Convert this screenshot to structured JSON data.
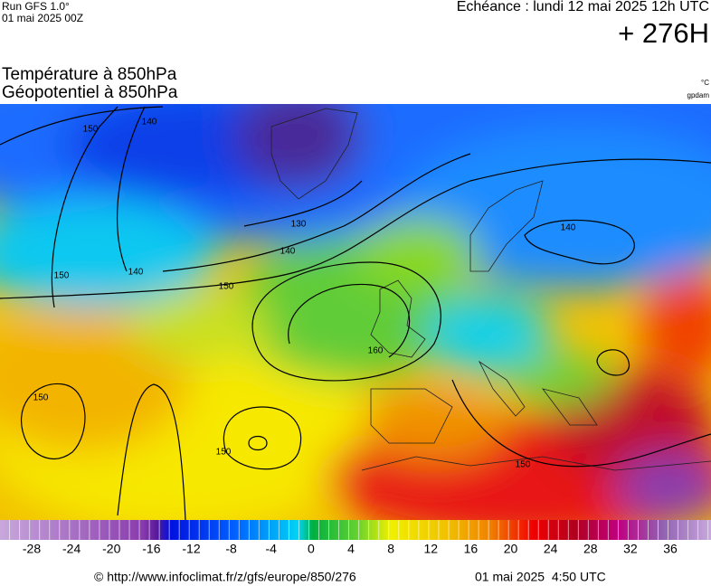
{
  "header": {
    "run": "Run GFS 1.0°",
    "run_date": "01 mai 2025 00Z",
    "forecast_time": "Echéance : lundi 12 mai 2025 12h UTC",
    "lead_time": "+ 276H"
  },
  "titles": [
    "Température à 850hPa",
    "Géopotentiel à 850hPa"
  ],
  "units": {
    "temperature": "°C",
    "geopotential": "gpdam"
  },
  "map": {
    "contour_labels": [
      150,
      140,
      150,
      140,
      150,
      140,
      130,
      160,
      150,
      150,
      150,
      140
    ]
  },
  "colorbar": {
    "ticks": [
      -28,
      -24,
      -20,
      -16,
      -12,
      -8,
      -4,
      0,
      4,
      8,
      12,
      16,
      20,
      24,
      28,
      32,
      36
    ]
  },
  "footer": {
    "source": "© http://www.infoclimat.fr/z/gfs/europe/850/276",
    "generated": "01 mai 2025  4:50 UTC"
  }
}
